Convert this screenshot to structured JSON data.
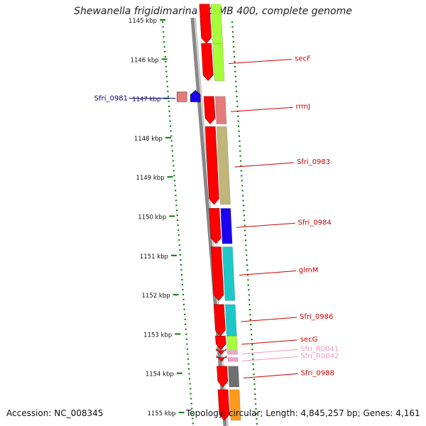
{
  "title": "Shewanella frigidimarina NCIMB 400, complete genome",
  "footer": {
    "accession": "Accession: NC_008345",
    "topology": "Topology: circular; Length: 4,845,257 bp; Genes: 4,161"
  },
  "ruler": {
    "unit": "kbp",
    "ticks": [
      {
        "kbp": 1145,
        "label": "1145 kbp"
      },
      {
        "kbp": 1146,
        "label": "1146 kbp"
      },
      {
        "kbp": 1147,
        "label": "1147 kbp"
      },
      {
        "kbp": 1148,
        "label": "1148 kbp"
      },
      {
        "kbp": 1149,
        "label": "1149 kbp"
      },
      {
        "kbp": 1150,
        "label": "1150 kbp"
      },
      {
        "kbp": 1151,
        "label": "1151 kbp"
      },
      {
        "kbp": 1152,
        "label": "1152 kbp"
      },
      {
        "kbp": 1153,
        "label": "1153 kbp"
      },
      {
        "kbp": 1154,
        "label": "1154 kbp"
      },
      {
        "kbp": 1155,
        "label": "1155 kbp"
      }
    ]
  },
  "genes": [
    {
      "label": "",
      "start": 1144.6,
      "end": 1145.6,
      "color": "#a6ff3a"
    },
    {
      "label": "secF",
      "start": 1145.6,
      "end": 1146.55,
      "color": "#a6ff3a"
    },
    {
      "label": "rrmJ",
      "start": 1146.95,
      "end": 1147.65,
      "color": "#e37b7b"
    },
    {
      "label": "Sfri_0983",
      "start": 1147.72,
      "end": 1149.7,
      "color": "#bfb678"
    },
    {
      "label": "Sfri_0984",
      "start": 1149.8,
      "end": 1150.7,
      "color": "#1a00ee"
    },
    {
      "label": "glmM",
      "start": 1150.78,
      "end": 1152.15,
      "color": "#1ec8c8"
    },
    {
      "label": "Sfri_0986",
      "start": 1152.25,
      "end": 1153.05,
      "color": "#1ec8c8"
    },
    {
      "label": "secG",
      "start": 1153.05,
      "end": 1153.4,
      "color": "#a6ff3a"
    },
    {
      "label": "Sfri_R0041",
      "start": 1153.42,
      "end": 1153.52,
      "color": "#f3a2c4"
    },
    {
      "label": "Sfri_R0042",
      "start": 1153.6,
      "end": 1153.7,
      "color": "#f3a2c4"
    },
    {
      "label": "Sfri_0988",
      "start": 1153.82,
      "end": 1154.35,
      "color": "#707070"
    },
    {
      "label": "",
      "start": 1154.42,
      "end": 1155.2,
      "color": "#ff9a1a"
    }
  ],
  "minus_strand_features": [
    {
      "label": "Sfri_0981",
      "start": 1146.82,
      "end": 1147.1,
      "color": "#e37b7b"
    },
    {
      "label": "",
      "start": 1146.82,
      "end": 1147.1,
      "color": "#1a00ee"
    }
  ],
  "colors": {
    "cds": "#ff0000",
    "ruler_dots": "#0a7a0a",
    "backbone": "#888888",
    "gene_label": "#cc0000",
    "rna_label": "#f098c0",
    "left_label": "#000088"
  }
}
